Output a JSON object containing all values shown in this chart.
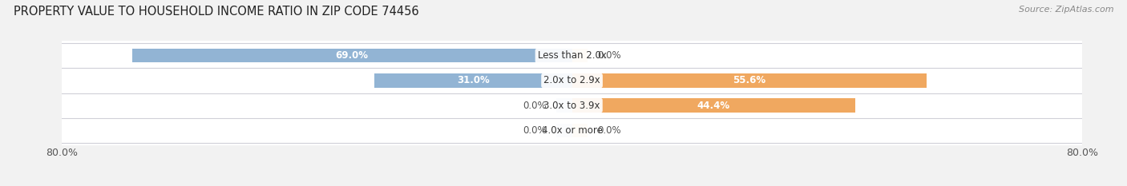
{
  "title": "PROPERTY VALUE TO HOUSEHOLD INCOME RATIO IN ZIP CODE 74456",
  "source": "Source: ZipAtlas.com",
  "categories": [
    "Less than 2.0x",
    "2.0x to 2.9x",
    "3.0x to 3.9x",
    "4.0x or more"
  ],
  "without_mortgage": [
    69.0,
    31.0,
    0.0,
    0.0
  ],
  "with_mortgage": [
    0.0,
    55.6,
    44.4,
    0.0
  ],
  "xlim": [
    -80,
    80
  ],
  "xtick_labels_left": "80.0%",
  "xtick_labels_right": "80.0%",
  "color_without": "#92b4d4",
  "color_with": "#f0a860",
  "color_with_light": "#f5cfa0",
  "color_without_light": "#c5d9ed",
  "bg_color": "#f2f2f2",
  "row_bg_color": "#ffffff",
  "title_fontsize": 10.5,
  "source_fontsize": 8,
  "tick_fontsize": 9,
  "label_fontsize": 8.5,
  "cat_fontsize": 8.5,
  "bar_height": 0.55,
  "figsize": [
    14.06,
    2.33
  ],
  "dpi": 100
}
